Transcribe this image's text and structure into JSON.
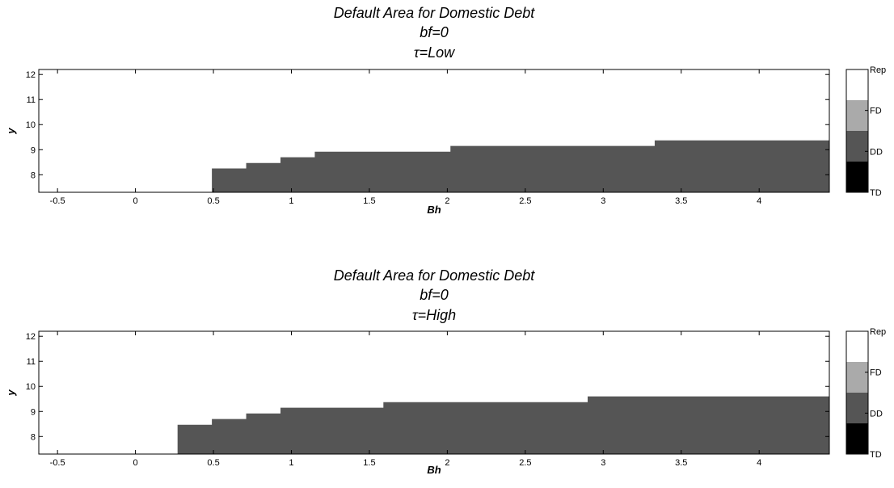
{
  "chart_data": [
    {
      "type": "heatmap",
      "title": [
        "Default Area for Domestic Debt",
        "bf=0",
        "τ=Low"
      ],
      "xlabel": "Bh",
      "ylabel": "y",
      "xlim": [
        -0.62,
        4.45
      ],
      "ylim": [
        7.3,
        12.2
      ],
      "xticks": [
        -0.5,
        0,
        0.5,
        1,
        1.5,
        2,
        2.5,
        3,
        3.5,
        4
      ],
      "xtick_labels": [
        "-0.5",
        "0",
        "0.5",
        "1",
        "1.5",
        "2",
        "2.5",
        "3",
        "3.5",
        "4"
      ],
      "yticks": [
        8,
        9,
        10,
        11,
        12
      ],
      "ytick_labels": [
        "8",
        "9",
        "10",
        "11",
        "12"
      ],
      "grid": false,
      "background_class": "Rep",
      "region_class": "DD",
      "default_boundary": {
        "x": [
          0.49,
          0.71,
          0.93,
          1.15,
          2.02,
          3.33
        ],
        "y": [
          8.25,
          8.47,
          8.7,
          8.92,
          9.15,
          9.37
        ]
      },
      "colorbar": {
        "labels": [
          "Rep",
          "FD",
          "DD",
          "TD"
        ],
        "colors": [
          "#ffffff",
          "#aaaaaa",
          "#555555",
          "#000000"
        ]
      }
    },
    {
      "type": "heatmap",
      "title": [
        "Default Area for Domestic Debt",
        "bf=0",
        "τ=High"
      ],
      "xlabel": "Bh",
      "ylabel": "y",
      "xlim": [
        -0.62,
        4.45
      ],
      "ylim": [
        7.3,
        12.2
      ],
      "xticks": [
        -0.5,
        0,
        0.5,
        1,
        1.5,
        2,
        2.5,
        3,
        3.5,
        4
      ],
      "xtick_labels": [
        "-0.5",
        "0",
        "0.5",
        "1",
        "1.5",
        "2",
        "2.5",
        "3",
        "3.5",
        "4"
      ],
      "yticks": [
        8,
        9,
        10,
        11,
        12
      ],
      "ytick_labels": [
        "8",
        "9",
        "10",
        "11",
        "12"
      ],
      "grid": false,
      "background_class": "Rep",
      "region_class": "DD",
      "default_boundary": {
        "x": [
          0.27,
          0.49,
          0.71,
          0.93,
          1.59,
          2.9
        ],
        "y": [
          8.47,
          8.7,
          8.92,
          9.15,
          9.37,
          9.6
        ]
      },
      "colorbar": {
        "labels": [
          "Rep",
          "FD",
          "DD",
          "TD"
        ],
        "colors": [
          "#ffffff",
          "#aaaaaa",
          "#555555",
          "#000000"
        ]
      }
    }
  ]
}
